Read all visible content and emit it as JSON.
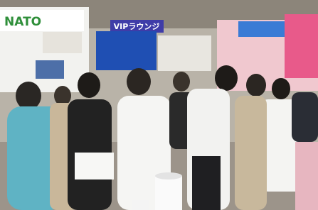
{
  "signs": {
    "booth_logo": "NATO",
    "vip_lounge": "VIPラウンジ"
  }
}
